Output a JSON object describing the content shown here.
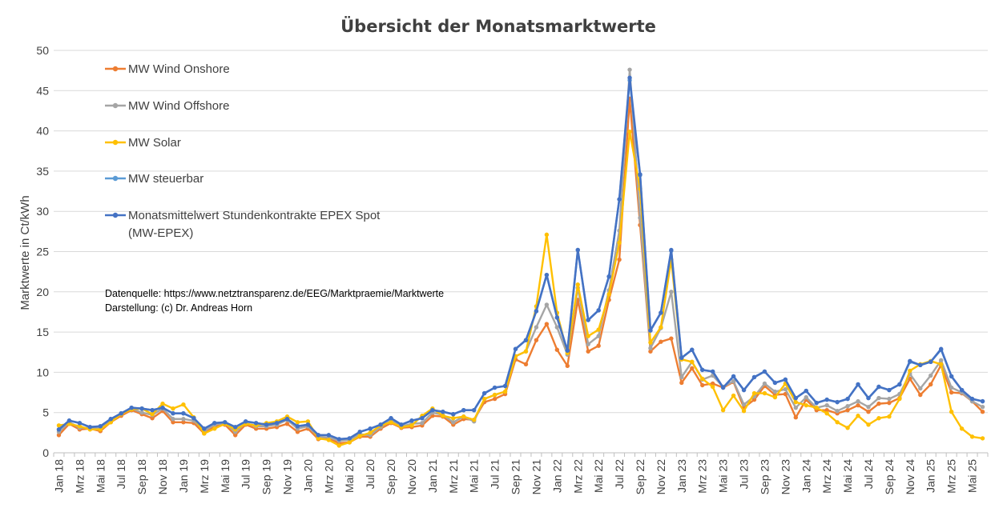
{
  "chart_data": {
    "type": "line",
    "title": "Übersicht der Monatsmarktwerte",
    "xlabel": "",
    "ylabel": "Marktwerte in Ct/kWh",
    "ylim": [
      0,
      50
    ],
    "yticks": [
      0,
      5,
      10,
      15,
      20,
      25,
      30,
      35,
      40,
      45,
      50
    ],
    "grid": true,
    "legend": "top-left",
    "x_tick_labels": [
      "Jan 18",
      "Mrz 18",
      "Mai 18",
      "Jul 18",
      "Sep 18",
      "Nov 18",
      "Jan 19",
      "Mrz 19",
      "Mai 19",
      "Jul 19",
      "Sep 19",
      "Nov 19",
      "Jan 20",
      "Mrz 20",
      "Mai 20",
      "Jul 20",
      "Sep 20",
      "Nov 20",
      "Jan 21",
      "Mrz 21",
      "Mai 21",
      "Jul 21",
      "Sep 21",
      "Nov 21",
      "Jan 22",
      "Mrz 22",
      "Mai 22",
      "Jul 22",
      "Sep 22",
      "Nov 22",
      "Jan 23",
      "Mrz 23",
      "Mai 23",
      "Jul 23",
      "Sep 23",
      "Nov 23",
      "Jan 24",
      "Mrz 24",
      "Mai 24",
      "Jul 24",
      "Sep 24",
      "Nov 24",
      "Jan 25",
      "Mrz 25",
      "Mai 25"
    ],
    "categories": [
      "Jan 18",
      "Feb 18",
      "Mrz 18",
      "Apr 18",
      "Mai 18",
      "Jun 18",
      "Jul 18",
      "Aug 18",
      "Sep 18",
      "Okt 18",
      "Nov 18",
      "Dez 18",
      "Jan 19",
      "Feb 19",
      "Mrz 19",
      "Apr 19",
      "Mai 19",
      "Jun 19",
      "Jul 19",
      "Aug 19",
      "Sep 19",
      "Okt 19",
      "Nov 19",
      "Dez 19",
      "Jan 20",
      "Feb 20",
      "Mrz 20",
      "Apr 20",
      "Mai 20",
      "Jun 20",
      "Jul 20",
      "Aug 20",
      "Sep 20",
      "Okt 20",
      "Nov 20",
      "Dez 20",
      "Jan 21",
      "Feb 21",
      "Mrz 21",
      "Apr 21",
      "Mai 21",
      "Jun 21",
      "Jul 21",
      "Aug 21",
      "Sep 21",
      "Okt 21",
      "Nov 21",
      "Dez 21",
      "Jan 22",
      "Feb 22",
      "Mrz 22",
      "Apr 22",
      "Mai 22",
      "Jun 22",
      "Jul 22",
      "Aug 22",
      "Sep 22",
      "Okt 22",
      "Nov 22",
      "Dez 22",
      "Jan 23",
      "Feb 23",
      "Mrz 23",
      "Apr 23",
      "Mai 23",
      "Jun 23",
      "Jul 23",
      "Aug 23",
      "Sep 23",
      "Okt 23",
      "Nov 23",
      "Dez 23",
      "Jan 24",
      "Feb 24",
      "Mrz 24",
      "Apr 24",
      "Mai 24",
      "Jun 24",
      "Jul 24",
      "Aug 24",
      "Sep 24",
      "Okt 24",
      "Nov 24",
      "Dez 24",
      "Jan 25",
      "Feb 25",
      "Mrz 25",
      "Apr 25",
      "Mai 25",
      "Jun 25"
    ],
    "series": [
      {
        "name": "MW Wind Onshore",
        "color": "#ED7D31",
        "values": [
          2.2,
          3.6,
          2.9,
          3.0,
          2.7,
          3.8,
          4.6,
          5.3,
          4.8,
          4.3,
          5.2,
          3.8,
          3.8,
          3.7,
          2.4,
          3.3,
          3.5,
          2.2,
          3.5,
          3.0,
          3.0,
          3.2,
          3.6,
          2.6,
          3.0,
          1.7,
          1.8,
          1.2,
          1.3,
          2.0,
          2.0,
          3.0,
          3.7,
          3.1,
          3.2,
          3.4,
          4.6,
          4.5,
          3.5,
          4.2,
          4.1,
          6.3,
          6.7,
          7.3,
          11.6,
          11.0,
          14.0,
          16.0,
          12.8,
          10.8,
          19.0,
          12.6,
          13.3,
          19.0,
          24.0,
          44.0,
          28.3,
          12.6,
          13.8,
          14.2,
          8.7,
          10.5,
          8.4,
          8.6,
          8.1,
          8.8,
          5.6,
          6.6,
          8.3,
          7.2,
          7.3,
          4.4,
          6.6,
          5.3,
          5.3,
          4.9,
          5.3,
          5.9,
          5.1,
          6.1,
          6.2,
          6.8,
          9.2,
          7.2,
          8.5,
          10.9,
          7.5,
          7.4,
          6.4,
          5.1
        ]
      },
      {
        "name": "MW Wind Offshore",
        "color": "#A5A5A5",
        "values": [
          2.6,
          3.8,
          3.1,
          3.1,
          3.0,
          4.0,
          4.8,
          5.5,
          5.0,
          4.7,
          5.5,
          4.2,
          4.2,
          4.0,
          2.7,
          3.5,
          3.7,
          2.6,
          3.7,
          3.3,
          3.3,
          3.5,
          4.1,
          3.0,
          3.3,
          2.0,
          1.9,
          1.5,
          1.6,
          2.3,
          2.2,
          3.2,
          4.0,
          3.3,
          3.6,
          3.7,
          5.0,
          4.7,
          3.8,
          4.5,
          3.9,
          6.7,
          7.2,
          7.6,
          12.0,
          12.6,
          15.6,
          18.4,
          15.6,
          12.2,
          20.5,
          13.5,
          14.5,
          20.2,
          27.6,
          47.6,
          29.2,
          13.0,
          15.5,
          20.0,
          9.4,
          11.3,
          9.1,
          9.6,
          8.2,
          8.9,
          6.0,
          7.0,
          8.6,
          7.6,
          7.9,
          5.6,
          6.9,
          5.6,
          5.9,
          5.2,
          5.8,
          6.4,
          5.7,
          6.8,
          6.7,
          7.3,
          9.8,
          8.0,
          9.6,
          11.5,
          8.1,
          7.5,
          6.4,
          5.7
        ]
      },
      {
        "name": "MW Solar",
        "color": "#FFC000",
        "values": [
          3.4,
          3.6,
          3.3,
          2.9,
          2.9,
          3.8,
          4.8,
          5.4,
          5.5,
          4.8,
          6.1,
          5.5,
          6.0,
          4.4,
          2.4,
          3.0,
          3.6,
          2.9,
          3.6,
          3.4,
          3.7,
          3.9,
          4.5,
          3.8,
          3.9,
          1.8,
          1.6,
          0.9,
          1.3,
          2.1,
          2.5,
          3.4,
          3.8,
          3.2,
          3.4,
          4.6,
          5.5,
          4.6,
          4.3,
          4.5,
          4.1,
          6.7,
          7.2,
          7.6,
          12.0,
          12.6,
          18.2,
          27.1,
          17.4,
          12.4,
          20.9,
          14.5,
          15.3,
          19.7,
          26.1,
          39.9,
          32.8,
          13.7,
          15.6,
          24.0,
          11.6,
          11.3,
          9.2,
          8.2,
          5.3,
          7.1,
          5.2,
          7.4,
          7.4,
          6.9,
          8.6,
          6.3,
          5.9,
          5.6,
          4.9,
          3.8,
          3.1,
          4.6,
          3.5,
          4.3,
          4.5,
          6.7,
          10.2,
          11.0,
          11.4,
          11.0,
          5.1,
          3.0,
          2.0,
          1.8
        ]
      },
      {
        "name": "MW steuerbar",
        "color": "#5B9BD5",
        "values": [
          2.9,
          4.0,
          3.7,
          3.2,
          3.3,
          4.2,
          4.9,
          5.6,
          5.5,
          5.3,
          5.6,
          4.9,
          4.9,
          4.3,
          3.0,
          3.7,
          3.8,
          3.2,
          3.9,
          3.7,
          3.5,
          3.7,
          4.2,
          3.3,
          3.5,
          2.2,
          2.2,
          1.7,
          1.8,
          2.6,
          3.0,
          3.5,
          4.3,
          3.5,
          4.0,
          4.3,
          5.3,
          5.1,
          4.8,
          5.3,
          5.3,
          7.4,
          8.1,
          8.3,
          12.9,
          14.0,
          17.6,
          22.1,
          16.8,
          12.7,
          25.2,
          16.5,
          17.7,
          21.9,
          31.5,
          46.3,
          34.5,
          15.2,
          17.4,
          25.1,
          11.8,
          12.8,
          10.3,
          10.1,
          8.1,
          9.5,
          7.8,
          9.4,
          10.1,
          8.7,
          9.1,
          6.8,
          7.7,
          6.2,
          6.6,
          6.3,
          6.7,
          8.5,
          6.8,
          8.2,
          7.8,
          8.5,
          11.3,
          10.9,
          11.3,
          12.8,
          9.5,
          7.8,
          6.7,
          6.4
        ]
      },
      {
        "name": "Monatsmittelwert Stundenkontrakte EPEX Spot (MW-EPEX)",
        "color": "#4472C4",
        "values": [
          2.9,
          4.0,
          3.7,
          3.2,
          3.3,
          4.2,
          4.9,
          5.6,
          5.5,
          5.3,
          5.6,
          4.9,
          4.9,
          4.3,
          3.0,
          3.7,
          3.8,
          3.2,
          3.9,
          3.7,
          3.5,
          3.7,
          4.2,
          3.3,
          3.5,
          2.2,
          2.2,
          1.7,
          1.8,
          2.6,
          3.0,
          3.5,
          4.3,
          3.5,
          4.0,
          4.3,
          5.3,
          5.1,
          4.8,
          5.3,
          5.3,
          7.4,
          8.1,
          8.3,
          12.9,
          14.0,
          17.6,
          22.1,
          16.8,
          12.7,
          25.2,
          16.5,
          17.7,
          21.9,
          31.5,
          46.6,
          34.6,
          15.2,
          17.4,
          25.2,
          11.8,
          12.8,
          10.3,
          10.1,
          8.1,
          9.5,
          7.8,
          9.4,
          10.1,
          8.7,
          9.1,
          6.8,
          7.7,
          6.2,
          6.6,
          6.3,
          6.7,
          8.5,
          6.8,
          8.2,
          7.8,
          8.5,
          11.4,
          10.9,
          11.3,
          12.9,
          9.5,
          7.8,
          6.7,
          6.4
        ]
      }
    ],
    "legend_lines": [
      [
        "MW Wind Onshore"
      ],
      [
        "MW Wind Offshore"
      ],
      [
        "MW Solar"
      ],
      [
        "MW steuerbar"
      ],
      [
        "Monatsmittelwert Stundenkontrakte EPEX Spot",
        "(MW-EPEX)"
      ]
    ],
    "annotations": [
      "Datenquelle: https://www.netztransparenz.de/EEG/Marktpraemie/Marktwerte",
      "Darstellung: (c) Dr. Andreas Horn"
    ]
  }
}
